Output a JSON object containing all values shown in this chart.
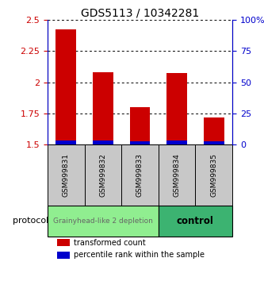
{
  "title": "GDS5113 / 10342281",
  "samples": [
    "GSM999831",
    "GSM999832",
    "GSM999833",
    "GSM999834",
    "GSM999835"
  ],
  "red_values": [
    2.42,
    2.08,
    1.8,
    2.07,
    1.72
  ],
  "blue_values": [
    1.535,
    1.535,
    1.525,
    1.535,
    1.525
  ],
  "baseline": 1.5,
  "ylim_left": [
    1.5,
    2.5
  ],
  "ylim_right": [
    0,
    100
  ],
  "yticks_left": [
    1.5,
    1.75,
    2.0,
    2.25,
    2.5
  ],
  "ytick_labels_left": [
    "1.5",
    "1.75",
    "2",
    "2.25",
    "2.5"
  ],
  "yticks_right": [
    0,
    25,
    50,
    75,
    100
  ],
  "ytick_labels_right": [
    "0",
    "25",
    "50",
    "75",
    "100%"
  ],
  "groups": [
    {
      "label": "Grainyhead-like 2 depletion",
      "samples": [
        0,
        1,
        2
      ],
      "color": "#90EE90",
      "text_color": "#666666",
      "text_fontsize": 6.5,
      "bold": false
    },
    {
      "label": "control",
      "samples": [
        3,
        4
      ],
      "color": "#3CB371",
      "text_color": "#000000",
      "text_fontsize": 8.5,
      "bold": true
    }
  ],
  "protocol_label": "protocol",
  "red_color": "#CC0000",
  "blue_color": "#0000CC",
  "bar_width": 0.55,
  "legend_red": "transformed count",
  "legend_blue": "percentile rank within the sample",
  "title_fontsize": 10,
  "tick_fontsize": 8,
  "sample_fontsize": 6.5
}
